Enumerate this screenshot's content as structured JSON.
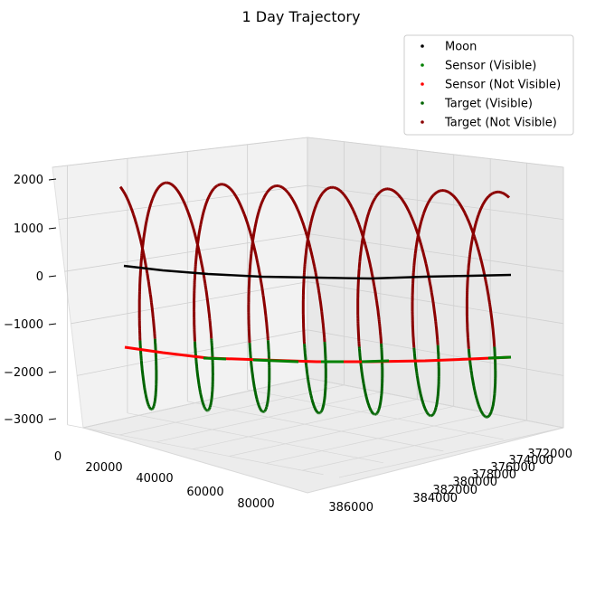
{
  "chart_data": {
    "type": "scatter",
    "projection": "3d",
    "title": "1 Day Trajectory",
    "xlabel": "",
    "ylabel": "",
    "zlabel": "",
    "grid": true,
    "legend_position": "top-right",
    "x_axis": {
      "range": [
        372000,
        386000
      ],
      "ticks": [
        "372000",
        "374000",
        "376000",
        "378000",
        "380000",
        "382000",
        "384000",
        "386000"
      ]
    },
    "y_axis": {
      "range": [
        0,
        85000
      ],
      "ticks": [
        "0",
        "20000",
        "40000",
        "60000",
        "80000"
      ]
    },
    "z_axis": {
      "range": [
        -3000,
        2000
      ],
      "ticks": [
        "2000",
        "1000",
        "0",
        "−1000",
        "−2000",
        "−3000"
      ]
    },
    "series": [
      {
        "name": "Moon",
        "color": "#000000",
        "points": [
          [
            373000,
            0,
            600
          ],
          [
            374500,
            6000,
            580
          ],
          [
            376000,
            12000,
            560
          ],
          [
            377200,
            19000,
            540
          ],
          [
            378400,
            26000,
            520
          ],
          [
            379600,
            33000,
            500
          ],
          [
            380800,
            40000,
            480
          ],
          [
            381800,
            47000,
            460
          ],
          [
            382700,
            54000,
            440
          ],
          [
            383500,
            61000,
            420
          ],
          [
            384200,
            68000,
            400
          ],
          [
            384800,
            75000,
            380
          ],
          [
            385300,
            82000,
            360
          ]
        ]
      },
      {
        "name": "Sensor (Visible)",
        "color": "#008000",
        "points": [
          [
            374800,
            8000,
            -1760
          ],
          [
            377800,
            23000,
            -1820
          ],
          [
            380200,
            38000,
            -1860
          ],
          [
            381700,
            46000,
            -1880
          ],
          [
            383900,
            66000,
            -1900
          ],
          [
            384600,
            73000,
            -1880
          ]
        ]
      },
      {
        "name": "Sensor (Not Visible)",
        "color": "#ff0000",
        "points": [
          [
            373000,
            0,
            -1600
          ],
          [
            374000,
            4000,
            -1700
          ],
          [
            376200,
            14000,
            -1780
          ],
          [
            379000,
            30000,
            -1840
          ],
          [
            381000,
            42000,
            -1870
          ],
          [
            382600,
            52000,
            -1890
          ],
          [
            383300,
            59000,
            -1900
          ],
          [
            385000,
            78000,
            -1860
          ],
          [
            385300,
            82000,
            -1800
          ]
        ]
      },
      {
        "name": "Target (Visible)",
        "color": "#006400",
        "arc_note": "lower portion of each helix loop",
        "z_range": [
          -3100,
          -1500
        ]
      },
      {
        "name": "Target (Not Visible)",
        "color": "#8b0000",
        "arc_note": "upper portion of each helix loop",
        "z_range": [
          -1500,
          2150
        ]
      }
    ],
    "helix": {
      "loops": 7,
      "center_z": -500,
      "amplitude_z": 2600,
      "x_start": 373000,
      "x_end": 385300,
      "y_start": 0,
      "y_end": 84000
    }
  }
}
